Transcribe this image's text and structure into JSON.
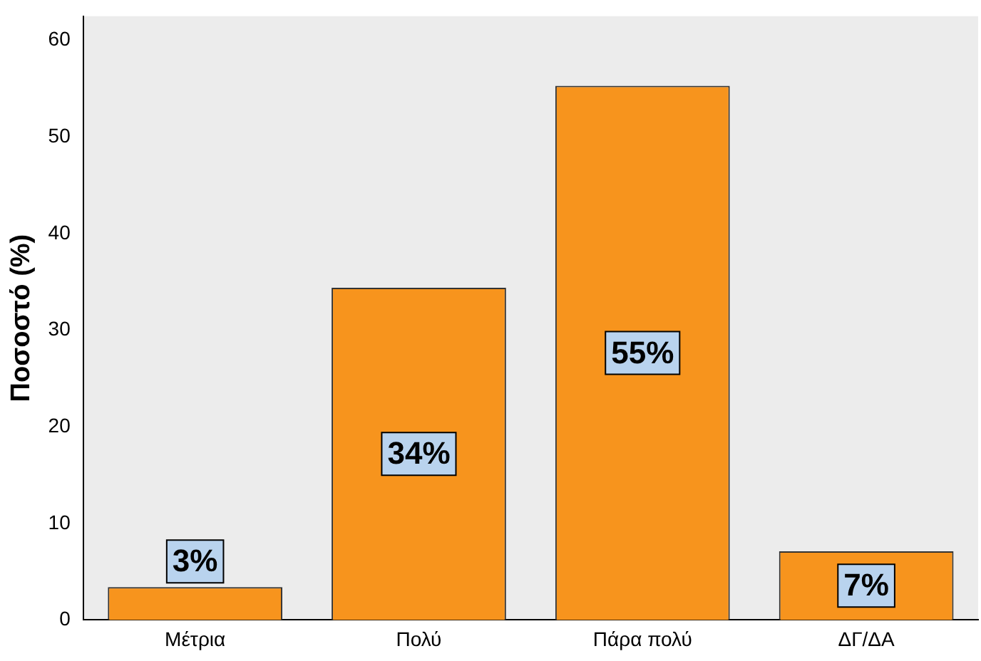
{
  "chart_data": {
    "type": "bar",
    "ylabel": "Ποσοστό (%)",
    "categories": [
      "Μέτρια",
      "Πολύ",
      "Πάρα πολύ",
      "ΔΓ/ΔΑ"
    ],
    "values": [
      3.4,
      34.4,
      55.3,
      7.1
    ],
    "value_labels": [
      "3%",
      "34%",
      "55%",
      "7%"
    ],
    "color": "#f7941d",
    "ylim": [
      0,
      62.5
    ],
    "yticks": [
      0,
      10,
      20,
      30,
      40,
      50,
      60
    ],
    "grid": false,
    "legend": false
  }
}
